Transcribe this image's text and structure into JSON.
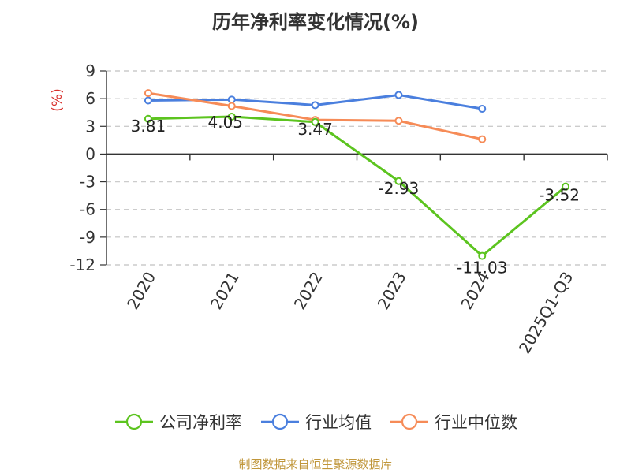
{
  "title": "历年净利率变化情况(%)",
  "source_note": "制图数据来自恒生聚源数据库",
  "colors": {
    "company": "#5cc41f",
    "industry_avg": "#4a7fde",
    "industry_median": "#f68b57",
    "unit_label": "#d8302c",
    "grid": "#cccccc",
    "axis": "#333333"
  },
  "chart_data": {
    "type": "line",
    "title": "历年净利率变化情况(%)",
    "ylabel": "(%)",
    "xlabel": "",
    "categories": [
      "2020",
      "2021",
      "2022",
      "2023",
      "2024",
      "2025Q1-Q3"
    ],
    "ylim": [
      -12,
      9
    ],
    "yticks": [
      9,
      6,
      3,
      0,
      -3,
      -6,
      -9,
      -12
    ],
    "grid": true,
    "legend_position": "bottom",
    "series": [
      {
        "name": "公司净利率",
        "color": "#5cc41f",
        "values": [
          3.81,
          4.05,
          3.47,
          -2.93,
          -11.03,
          -3.52
        ],
        "labels": [
          "3.81",
          "4.05",
          "3.47",
          "-2.93",
          "-11.03",
          "-3.52"
        ]
      },
      {
        "name": "行业均值",
        "color": "#4a7fde",
        "values": [
          5.8,
          5.9,
          5.3,
          6.4,
          4.9,
          null
        ]
      },
      {
        "name": "行业中位数",
        "color": "#f68b57",
        "values": [
          6.6,
          5.2,
          3.7,
          3.6,
          1.6,
          null
        ]
      }
    ]
  }
}
